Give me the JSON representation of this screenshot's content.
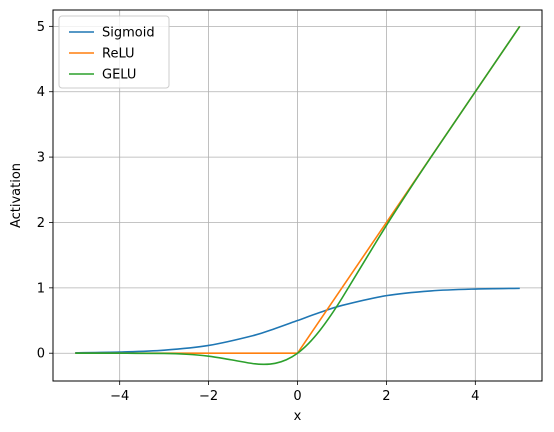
{
  "chart_data": {
    "type": "line",
    "title": "",
    "xlabel": "x",
    "ylabel": "Activation",
    "xlim": [
      -5.5,
      5.5
    ],
    "ylim": [
      -0.425,
      5.25
    ],
    "x_ticks": [
      -4,
      -2,
      0,
      2,
      4
    ],
    "y_ticks": [
      0,
      1,
      2,
      3,
      4,
      5
    ],
    "x_tick_labels": [
      "−4",
      "−2",
      "0",
      "2",
      "4"
    ],
    "y_tick_labels": [
      "0",
      "1",
      "2",
      "3",
      "4",
      "5"
    ],
    "grid": true,
    "legend_position": "top-left",
    "x_range": [
      -5,
      5
    ],
    "series": [
      {
        "name": "Sigmoid",
        "color": "#1f77b4",
        "x": [
          -5,
          -4,
          -3,
          -2,
          -1,
          -0.5,
          0,
          0.5,
          1,
          2,
          3,
          4,
          5
        ],
        "y": [
          0.007,
          0.018,
          0.047,
          0.119,
          0.269,
          0.378,
          0.5,
          0.622,
          0.731,
          0.881,
          0.953,
          0.982,
          0.993
        ]
      },
      {
        "name": "ReLU",
        "color": "#ff7f0e",
        "x": [
          -5,
          0,
          5
        ],
        "y": [
          0,
          0,
          5
        ]
      },
      {
        "name": "GELU",
        "color": "#2ca02c",
        "x": [
          -5,
          -4,
          -3,
          -2.5,
          -2,
          -1.5,
          -1,
          -0.75,
          -0.5,
          -0.25,
          0,
          0.25,
          0.5,
          0.75,
          1,
          1.5,
          2,
          2.5,
          3,
          4,
          5
        ],
        "y": [
          0,
          0,
          -0.004,
          -0.016,
          -0.045,
          -0.1,
          -0.159,
          -0.17,
          -0.154,
          -0.1,
          0,
          0.15,
          0.346,
          0.58,
          0.841,
          1.4,
          1.955,
          2.484,
          2.996,
          4.0,
          5.0
        ]
      }
    ]
  }
}
